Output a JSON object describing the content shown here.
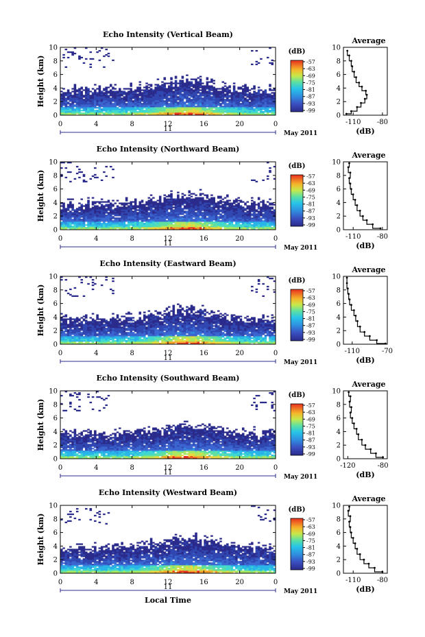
{
  "chart_data": [
    {
      "type": "heatmap",
      "title": "Echo Intensity (Vertical Beam)",
      "ylabel": "Height (km)",
      "ylim": [
        0,
        10
      ],
      "xlim": [
        0,
        24
      ],
      "x_ticks": [
        "0",
        "4",
        "8",
        "12",
        "16",
        "20",
        "0"
      ],
      "y_ticks": [
        "0",
        "2",
        "4",
        "6",
        "8",
        "10"
      ],
      "day_label": "11",
      "date_label": "May 2011",
      "colorbar": {
        "unit": "(dB)",
        "ticks": [
          "-57",
          "-63",
          "-69",
          "-75",
          "-81",
          "-87",
          "-93",
          "-99"
        ]
      },
      "avg": {
        "title": "Average",
        "xlabel": "(dB)",
        "x_ticks": [
          "-110",
          "-80"
        ],
        "xlim": [
          -120,
          -75
        ],
        "profile": [
          [
            -117,
            0.2
          ],
          [
            -112,
            0.6
          ],
          [
            -106,
            1.2
          ],
          [
            -102,
            1.8
          ],
          [
            -98,
            2.4
          ],
          [
            -96,
            3.0
          ],
          [
            -97,
            3.6
          ],
          [
            -101,
            4.2
          ],
          [
            -104,
            4.8
          ],
          [
            -107,
            5.6
          ],
          [
            -109,
            6.4
          ],
          [
            -111,
            7.2
          ],
          [
            -112,
            8.0
          ],
          [
            -114,
            8.8
          ],
          [
            -116,
            9.5
          ]
        ]
      }
    },
    {
      "type": "heatmap",
      "title": "Echo Intensity (Northward Beam)",
      "ylabel": "Height (km)",
      "ylim": [
        0,
        10
      ],
      "xlim": [
        0,
        24
      ],
      "x_ticks": [
        "0",
        "4",
        "8",
        "12",
        "16",
        "20",
        "0"
      ],
      "y_ticks": [
        "0",
        "2",
        "4",
        "6",
        "8",
        "10"
      ],
      "day_label": "11",
      "date_label": "May 2011",
      "colorbar": {
        "unit": "(dB)",
        "ticks": [
          "-57",
          "-63",
          "-69",
          "-75",
          "-81",
          "-87",
          "-93",
          "-99"
        ]
      },
      "avg": {
        "title": "Average",
        "xlabel": "(dB)",
        "x_ticks": [
          "-110",
          "-80"
        ],
        "xlim": [
          -120,
          -75
        ],
        "profile": [
          [
            -82,
            0.2
          ],
          [
            -90,
            0.8
          ],
          [
            -96,
            1.4
          ],
          [
            -100,
            2.0
          ],
          [
            -103,
            2.8
          ],
          [
            -106,
            3.6
          ],
          [
            -108,
            4.4
          ],
          [
            -110,
            5.2
          ],
          [
            -112,
            6.0
          ],
          [
            -113,
            6.8
          ],
          [
            -114,
            7.6
          ],
          [
            -113,
            8.4
          ],
          [
            -115,
            9.2
          ],
          [
            -114,
            9.8
          ]
        ]
      }
    },
    {
      "type": "heatmap",
      "title": "Echo Intensity (Eastward Beam)",
      "ylabel": "Height (km)",
      "ylim": [
        0,
        10
      ],
      "xlim": [
        0,
        24
      ],
      "x_ticks": [
        "0",
        "4",
        "8",
        "12",
        "16",
        "20",
        "0"
      ],
      "y_ticks": [
        "0",
        "2",
        "4",
        "6",
        "8",
        "10"
      ],
      "day_label": "11",
      "date_label": "May 2011",
      "colorbar": {
        "unit": "(dB)",
        "ticks": [
          "-57",
          "-63",
          "-69",
          "-75",
          "-81",
          "-87",
          "-93",
          "-99"
        ]
      },
      "avg": {
        "title": "Average",
        "xlabel": "(dB)",
        "x_ticks": [
          "-110",
          "-70"
        ],
        "xlim": [
          -120,
          -70
        ],
        "profile": [
          [
            -72,
            0.1
          ],
          [
            -82,
            0.6
          ],
          [
            -90,
            1.2
          ],
          [
            -96,
            1.8
          ],
          [
            -101,
            2.6
          ],
          [
            -104,
            3.4
          ],
          [
            -106,
            4.2
          ],
          [
            -108,
            5.0
          ],
          [
            -111,
            5.8
          ],
          [
            -113,
            6.6
          ],
          [
            -114,
            7.4
          ],
          [
            -115,
            8.2
          ],
          [
            -116,
            9.0
          ],
          [
            -116,
            9.8
          ]
        ]
      }
    },
    {
      "type": "heatmap",
      "title": "Echo Intensity (Southward Beam)",
      "ylabel": "Height (km)",
      "ylim": [
        0,
        10
      ],
      "xlim": [
        0,
        24
      ],
      "x_ticks": [
        "0",
        "4",
        "8",
        "12",
        "16",
        "20",
        "0"
      ],
      "y_ticks": [
        "0",
        "2",
        "4",
        "6",
        "8",
        "10"
      ],
      "day_label": "11",
      "date_label": "May 2011",
      "colorbar": {
        "unit": "(dB)",
        "ticks": [
          "-57",
          "-63",
          "-69",
          "-75",
          "-81",
          "-87",
          "-93",
          "-99"
        ]
      },
      "avg": {
        "title": "Average",
        "xlabel": "(dB)",
        "x_ticks": [
          "-120",
          "-80"
        ],
        "xlim": [
          -125,
          -75
        ],
        "profile": [
          [
            -80,
            0.2
          ],
          [
            -88,
            0.8
          ],
          [
            -94,
            1.4
          ],
          [
            -100,
            2.0
          ],
          [
            -104,
            2.8
          ],
          [
            -108,
            3.6
          ],
          [
            -110,
            4.4
          ],
          [
            -113,
            5.2
          ],
          [
            -115,
            6.0
          ],
          [
            -117,
            6.8
          ],
          [
            -116,
            7.6
          ],
          [
            -118,
            8.4
          ],
          [
            -117,
            9.2
          ],
          [
            -119,
            9.8
          ]
        ]
      }
    },
    {
      "type": "heatmap",
      "title": "Echo Intensity (Westward Beam)",
      "ylabel": "Height (km)",
      "ylim": [
        0,
        10
      ],
      "xlim": [
        0,
        24
      ],
      "x_ticks": [
        "0",
        "4",
        "8",
        "12",
        "16",
        "20",
        "0"
      ],
      "y_ticks": [
        "0",
        "2",
        "4",
        "6",
        "8",
        "10"
      ],
      "day_label": "11",
      "date_label": "May 2011",
      "xlabel": "Local Time",
      "colorbar": {
        "unit": "(dB)",
        "ticks": [
          "-57",
          "-63",
          "-69",
          "-75",
          "-81",
          "-87",
          "-93",
          "-99"
        ]
      },
      "avg": {
        "title": "Average",
        "xlabel": "(dB)",
        "x_ticks": [
          "-110",
          "-80"
        ],
        "xlim": [
          -120,
          -75
        ],
        "profile": [
          [
            -80,
            0.2
          ],
          [
            -88,
            0.8
          ],
          [
            -94,
            1.4
          ],
          [
            -99,
            2.0
          ],
          [
            -103,
            2.8
          ],
          [
            -106,
            3.6
          ],
          [
            -108,
            4.4
          ],
          [
            -110,
            5.2
          ],
          [
            -112,
            6.0
          ],
          [
            -113,
            6.8
          ],
          [
            -114,
            7.6
          ],
          [
            -113,
            8.4
          ],
          [
            -115,
            9.2
          ],
          [
            -114,
            9.8
          ]
        ]
      }
    }
  ]
}
